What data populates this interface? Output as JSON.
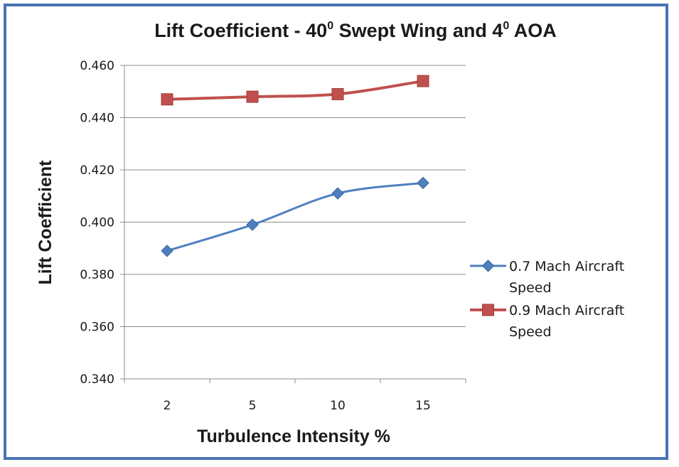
{
  "chart_data": {
    "type": "line",
    "title": {
      "parts": [
        {
          "text": "Lift Coefficient - 40"
        },
        {
          "text": "0",
          "sup": true
        },
        {
          "text": " Swept Wing and 4"
        },
        {
          "text": "0",
          "sup": true
        },
        {
          "text": " AOA"
        }
      ]
    },
    "xlabel": "Turbulence Intensity %",
    "ylabel": "Lift Coefficient",
    "categories": [
      "2",
      "5",
      "10",
      "15"
    ],
    "ylim": [
      0.34,
      0.46
    ],
    "yticks": [
      "0.340",
      "0.360",
      "0.380",
      "0.400",
      "0.420",
      "0.440",
      "0.460"
    ],
    "grid": true,
    "legend_position": "right",
    "series": [
      {
        "name_lines": [
          "0.7 Mach Aircraft",
          "Speed"
        ],
        "values": [
          0.389,
          0.399,
          0.411,
          0.415
        ],
        "color": "#4f7fbf",
        "marker": "diamond",
        "smooth": true
      },
      {
        "name_lines": [
          "0.9 Mach Aircraft",
          "Speed"
        ],
        "values": [
          0.447,
          0.448,
          0.449,
          0.454
        ],
        "color": "#c0504d",
        "marker": "square",
        "smooth": true
      }
    ]
  }
}
